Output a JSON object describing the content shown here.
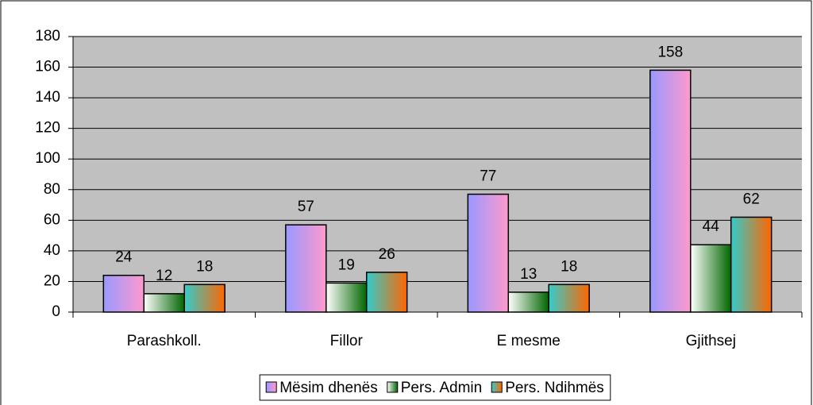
{
  "chart_data": {
    "type": "bar",
    "categories": [
      "Parashkoll.",
      "Fillor",
      "E mesme",
      "Gjithsej"
    ],
    "series": [
      {
        "name": "Mësim dhenës",
        "color": [
          "#9999ff",
          "#ff99cc"
        ],
        "values": [
          24,
          57,
          77,
          158
        ]
      },
      {
        "name": "Pers. Admin",
        "color": [
          "#ffffff",
          "#006600"
        ],
        "values": [
          12,
          19,
          13,
          44
        ]
      },
      {
        "name": "Pers. Ndihmës",
        "color": [
          "#33cccc",
          "#ff6600"
        ],
        "values": [
          18,
          26,
          18,
          62
        ]
      }
    ],
    "ylim": [
      0,
      180
    ],
    "yticks": [
      0,
      20,
      40,
      60,
      80,
      100,
      120,
      140,
      160,
      180
    ],
    "grid": true,
    "legend": "bottom"
  }
}
